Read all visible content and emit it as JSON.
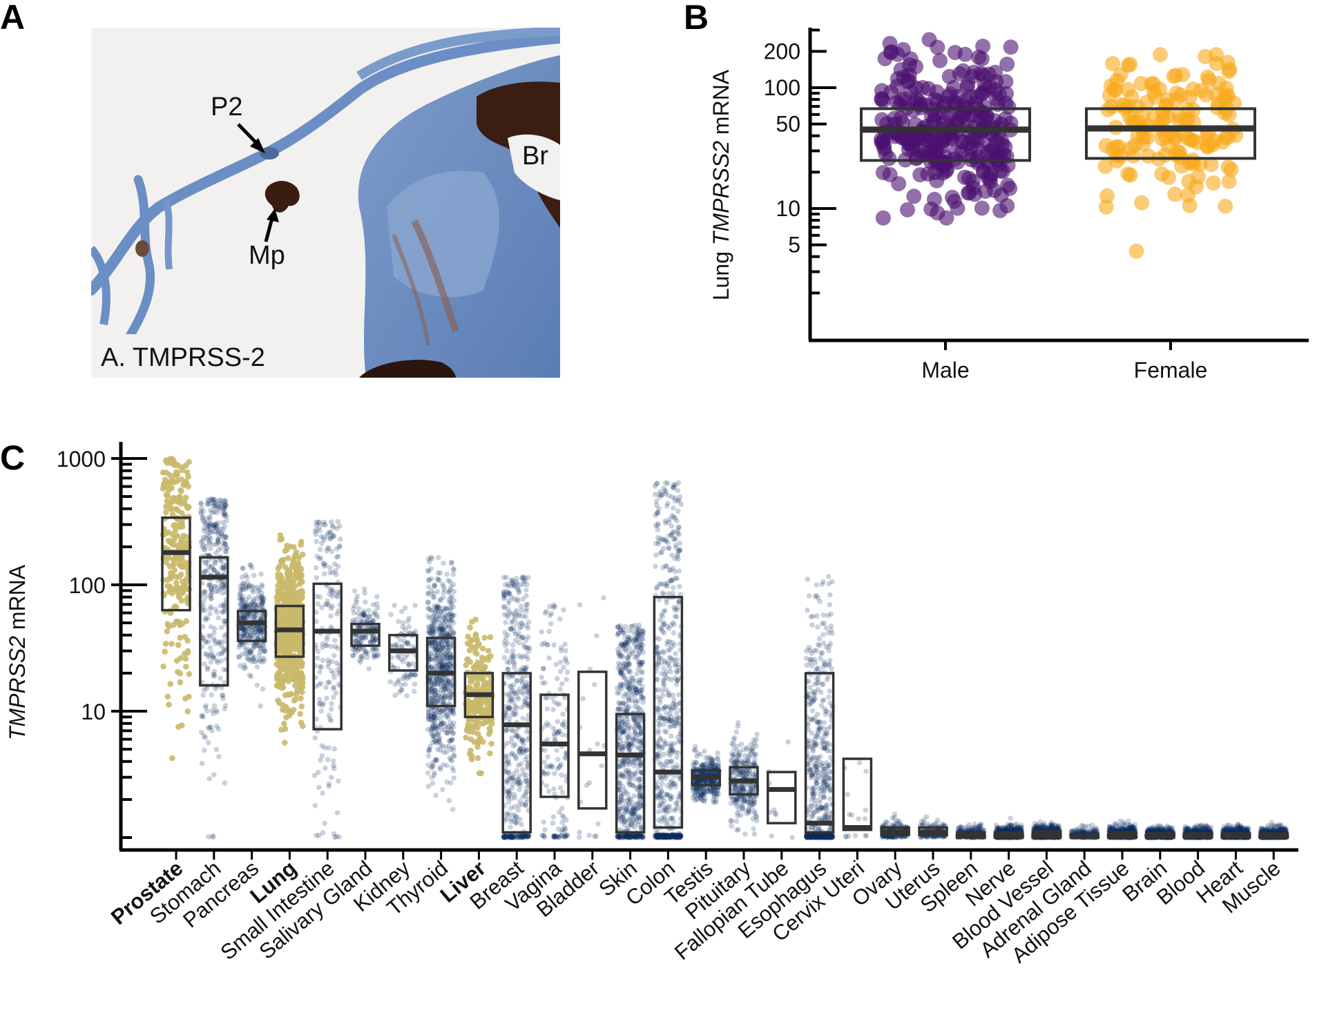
{
  "panels": {
    "a": "A",
    "b": "B",
    "c": "C"
  },
  "micrograph": {
    "caption": "A. TMPRSS-2",
    "labels": {
      "p2": "P2",
      "mp": "Mp",
      "br": "Br"
    }
  },
  "colors": {
    "male": "#4b116f",
    "female": "#f9a91b",
    "highlight": "#c9b96b",
    "other": "#0f2d5e",
    "box": "#333333"
  },
  "chart_data": [
    {
      "type": "scatter",
      "title": "",
      "ylabel_prefix": "Lung ",
      "ylabel_gene": "TMPRSS2",
      "ylabel_suffix": " mRNA",
      "yscale": "log",
      "ylim": [
        1.2,
        300
      ],
      "yticks": [
        5,
        10,
        50,
        100,
        200
      ],
      "ytick_labels": [
        "5",
        "10",
        "50",
        "100",
        "200"
      ],
      "categories": [
        "Male",
        "Female"
      ],
      "series": [
        {
          "name": "Male",
          "n": 300,
          "median": 45,
          "q1": 25,
          "q3": 67,
          "range": [
            1.4,
            250
          ]
        },
        {
          "name": "Female",
          "n": 150,
          "median": 46,
          "q1": 26,
          "q3": 67,
          "range": [
            3,
            190
          ]
        }
      ]
    },
    {
      "type": "scatter",
      "ylabel_gene": "TMPRSS2",
      "ylabel_suffix": " mRNA",
      "yscale": "log",
      "ylim": [
        0.9,
        1200
      ],
      "yticks": [
        10,
        100,
        1000
      ],
      "ytick_labels": [
        "10",
        "100",
        "1000"
      ],
      "highlighted": [
        "Prostate",
        "Lung",
        "Liver"
      ],
      "categories": [
        "Prostate",
        "Stomach",
        "Pancreas",
        "Lung",
        "Small Intestine",
        "Salivary Gland",
        "Kidney",
        "Thyroid",
        "Liver",
        "Breast",
        "Vagina",
        "Bladder",
        "Skin",
        "Colon",
        "Testis",
        "Pituitary",
        "Fallopian Tube",
        "Esophagus",
        "Cervix Uteri",
        "Ovary",
        "Uterus",
        "Spleen",
        "Nerve",
        "Blood Vessel",
        "Adrenal Gland",
        "Adipose Tissue",
        "Brain",
        "Blood",
        "Heart",
        "Muscle"
      ],
      "series": [
        {
          "name": "Prostate",
          "n": 250,
          "median": 180,
          "q1": 63,
          "q3": 340,
          "range": [
            1,
            1000
          ]
        },
        {
          "name": "Stomach",
          "n": 360,
          "median": 115,
          "q1": 16,
          "q3": 165,
          "range": [
            1,
            480
          ]
        },
        {
          "name": "Pancreas",
          "n": 330,
          "median": 50,
          "q1": 36,
          "q3": 62,
          "range": [
            9,
            165
          ]
        },
        {
          "name": "Lung",
          "n": 580,
          "median": 44,
          "q1": 27,
          "q3": 68,
          "range": [
            1,
            250
          ]
        },
        {
          "name": "Small Intestine",
          "n": 190,
          "median": 43,
          "q1": 7.2,
          "q3": 102,
          "range": [
            1,
            320
          ]
        },
        {
          "name": "Salivary Gland",
          "n": 160,
          "median": 43,
          "q1": 33,
          "q3": 49,
          "range": [
            5.5,
            95
          ]
        },
        {
          "name": "Kidney",
          "n": 90,
          "median": 30,
          "q1": 21,
          "q3": 40,
          "range": [
            13,
            70
          ]
        },
        {
          "name": "Thyroid",
          "n": 650,
          "median": 20,
          "q1": 11,
          "q3": 38,
          "range": [
            1.6,
            165
          ]
        },
        {
          "name": "Liver",
          "n": 230,
          "median": 13.5,
          "q1": 9,
          "q3": 20,
          "range": [
            3.2,
            75
          ]
        },
        {
          "name": "Breast",
          "n": 460,
          "median": 7.8,
          "q1": 1.1,
          "q3": 20,
          "range": [
            1,
            115
          ]
        },
        {
          "name": "Vagina",
          "n": 160,
          "median": 5.5,
          "q1": 2.1,
          "q3": 13.5,
          "range": [
            1,
            70
          ]
        },
        {
          "name": "Bladder",
          "n": 20,
          "median": 4.6,
          "q1": 1.7,
          "q3": 20.5,
          "range": [
            1,
            82
          ]
        },
        {
          "name": "Skin",
          "n": 1800,
          "median": 4.5,
          "q1": 1.1,
          "q3": 9.5,
          "range": [
            1,
            48
          ]
        },
        {
          "name": "Colon",
          "n": 780,
          "median": 3.3,
          "q1": 1.2,
          "q3": 80,
          "range": [
            1,
            650
          ]
        },
        {
          "name": "Testis",
          "n": 360,
          "median": 3.0,
          "q1": 2.6,
          "q3": 3.4,
          "range": [
            1.9,
            6
          ]
        },
        {
          "name": "Pituitary",
          "n": 280,
          "median": 2.8,
          "q1": 2.2,
          "q3": 3.6,
          "range": [
            1,
            10
          ]
        },
        {
          "name": "Fallopian Tube",
          "n": 9,
          "median": 2.4,
          "q1": 1.3,
          "q3": 3.3,
          "range": [
            1,
            22
          ]
        },
        {
          "name": "Esophagus",
          "n": 1450,
          "median": 1.3,
          "q1": 1.1,
          "q3": 20,
          "range": [
            1,
            130
          ]
        },
        {
          "name": "Cervix Uteri",
          "n": 15,
          "median": 1.2,
          "q1": 1.15,
          "q3": 4.2,
          "range": [
            1,
            18
          ]
        },
        {
          "name": "Ovary",
          "n": 180,
          "median": 1.1,
          "q1": 1.05,
          "q3": 1.2,
          "range": [
            1,
            32
          ]
        },
        {
          "name": "Uterus",
          "n": 140,
          "median": 1.1,
          "q1": 1.05,
          "q3": 1.2,
          "range": [
            1,
            5
          ]
        },
        {
          "name": "Spleen",
          "n": 240,
          "median": 1.05,
          "q1": 1.0,
          "q3": 1.1,
          "range": [
            1,
            4
          ]
        },
        {
          "name": "Nerve",
          "n": 620,
          "median": 1.05,
          "q1": 1.0,
          "q3": 1.1,
          "range": [
            1,
            25
          ]
        },
        {
          "name": "Blood Vessel",
          "n": 1300,
          "median": 1.05,
          "q1": 1.0,
          "q3": 1.12,
          "range": [
            1,
            57
          ]
        },
        {
          "name": "Adrenal Gland",
          "n": 260,
          "median": 1.03,
          "q1": 1.0,
          "q3": 1.06,
          "range": [
            1,
            2.2
          ]
        },
        {
          "name": "Adipose Tissue",
          "n": 1200,
          "median": 1.05,
          "q1": 1.0,
          "q3": 1.1,
          "range": [
            1,
            30
          ]
        },
        {
          "name": "Brain",
          "n": 2600,
          "median": 1.03,
          "q1": 1.0,
          "q3": 1.08,
          "range": [
            1,
            4.5
          ]
        },
        {
          "name": "Blood",
          "n": 930,
          "median": 1.03,
          "q1": 1.0,
          "q3": 1.08,
          "range": [
            1,
            17
          ]
        },
        {
          "name": "Heart",
          "n": 860,
          "median": 1.03,
          "q1": 1.0,
          "q3": 1.08,
          "range": [
            1,
            5
          ]
        },
        {
          "name": "Muscle",
          "n": 800,
          "median": 1.03,
          "q1": 1.0,
          "q3": 1.08,
          "range": [
            1,
            4.5
          ]
        }
      ]
    }
  ]
}
